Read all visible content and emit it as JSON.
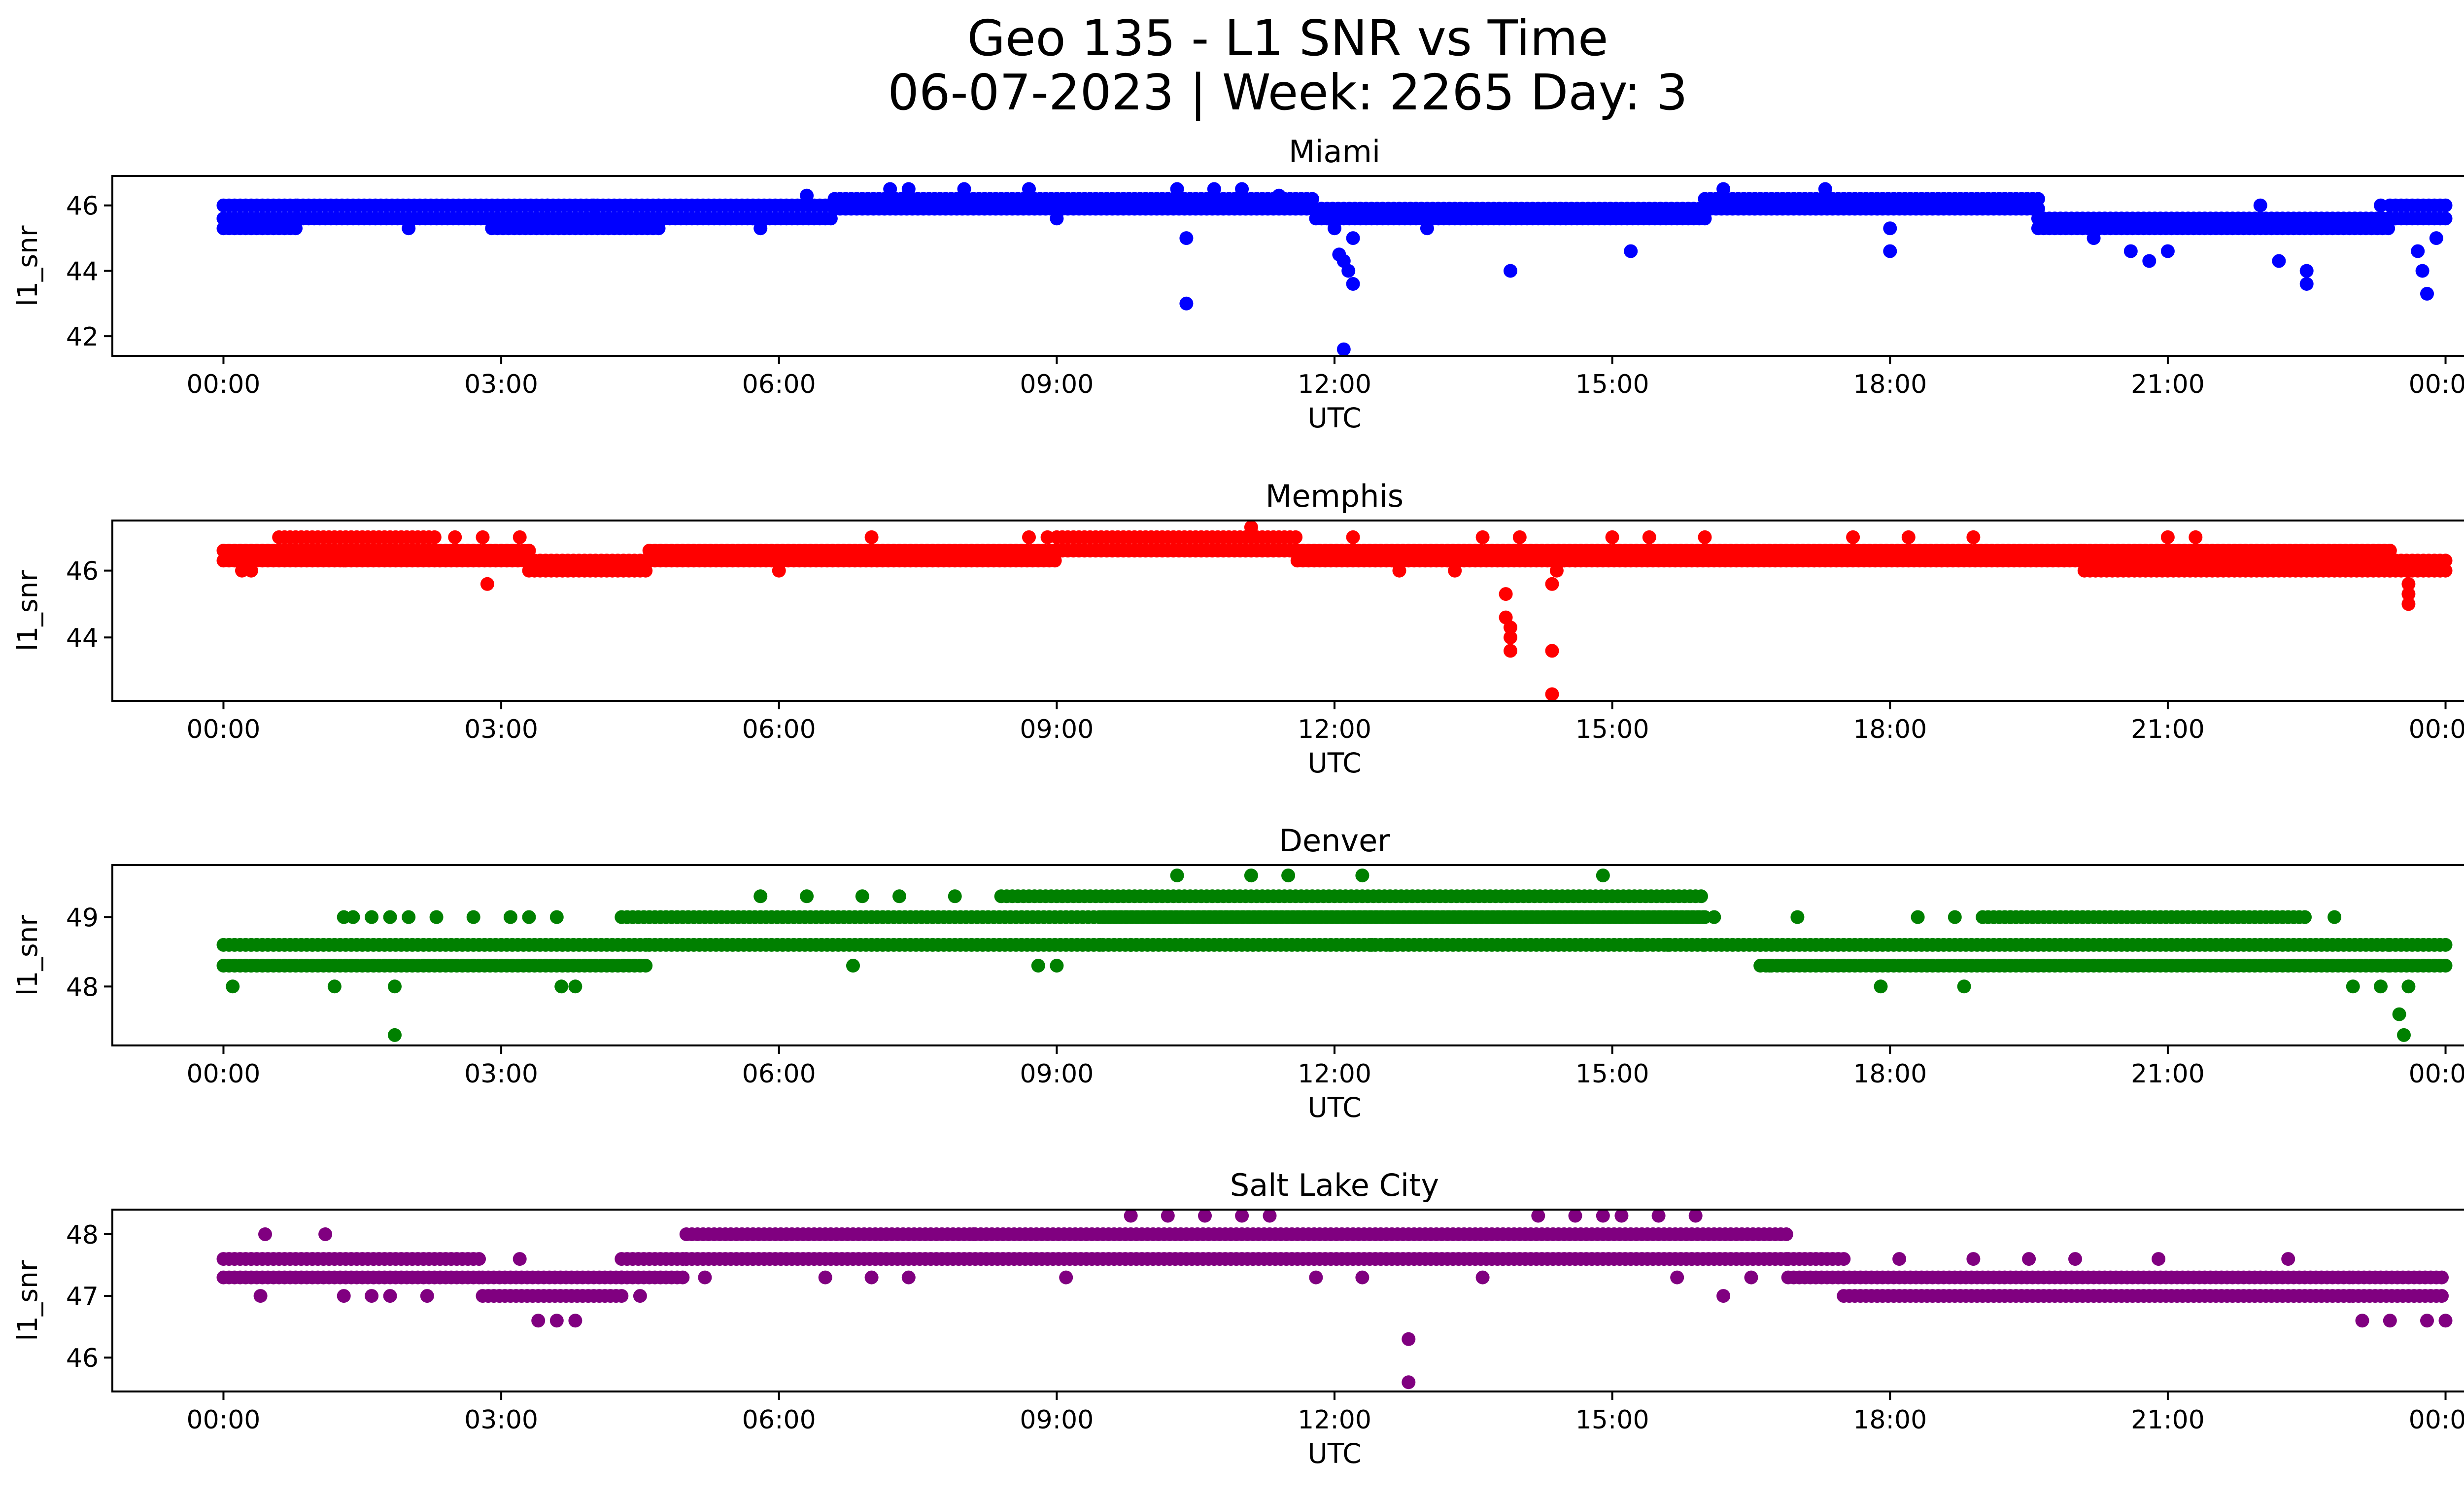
{
  "chart_data": [
    {
      "type": "scatter",
      "title": "Miami",
      "xlabel": "UTC",
      "ylabel": "l1_snr",
      "color": "#0000ff",
      "xlim_hours": [
        -1.2,
        25.2
      ],
      "ylim": [
        41.4,
        46.9
      ],
      "xticks": [
        {
          "value": 0,
          "label": "00:00"
        },
        {
          "value": 3,
          "label": "03:00"
        },
        {
          "value": 6,
          "label": "06:00"
        },
        {
          "value": 9,
          "label": "09:00"
        },
        {
          "value": 12,
          "label": "12:00"
        },
        {
          "value": 15,
          "label": "15:00"
        },
        {
          "value": 18,
          "label": "18:00"
        },
        {
          "value": 21,
          "label": "21:00"
        },
        {
          "value": 24,
          "label": "00:00"
        }
      ],
      "yticks": [
        {
          "value": 42,
          "label": "42"
        },
        {
          "value": 44,
          "label": "44"
        },
        {
          "value": 46,
          "label": "46"
        }
      ],
      "bands": [
        {
          "start": 0,
          "end": 0.8,
          "values": [
            45.3,
            45.6,
            46.0
          ]
        },
        {
          "start": 0.8,
          "end": 4.7,
          "values": [
            45.6,
            46.0
          ]
        },
        {
          "start": 2.9,
          "end": 4.7,
          "values": [
            45.3,
            45.6
          ]
        },
        {
          "start": 4.7,
          "end": 6.6,
          "values": [
            45.6,
            46.0
          ]
        },
        {
          "start": 6.6,
          "end": 11.8,
          "values": [
            45.9,
            46.2
          ]
        },
        {
          "start": 11.8,
          "end": 16.0,
          "values": [
            45.6,
            45.9
          ]
        },
        {
          "start": 16.0,
          "end": 19.6,
          "values": [
            45.9,
            46.2
          ]
        },
        {
          "start": 19.6,
          "end": 23.4,
          "values": [
            45.3,
            45.6
          ]
        },
        {
          "start": 23.4,
          "end": 24.0,
          "values": [
            45.6,
            46.0
          ]
        }
      ],
      "points": [
        [
          0.0,
          45.6
        ],
        [
          2.0,
          45.3
        ],
        [
          3.5,
          46.0
        ],
        [
          4.0,
          46.0
        ],
        [
          5.8,
          45.3
        ],
        [
          6.3,
          46.3
        ],
        [
          7.2,
          46.5
        ],
        [
          7.4,
          46.5
        ],
        [
          8.0,
          46.5
        ],
        [
          8.7,
          46.5
        ],
        [
          9.0,
          45.6
        ],
        [
          10.3,
          46.5
        ],
        [
          10.4,
          45.0
        ],
        [
          10.4,
          43.0
        ],
        [
          10.7,
          46.5
        ],
        [
          11.0,
          46.5
        ],
        [
          11.4,
          46.3
        ],
        [
          12.0,
          45.3
        ],
        [
          12.05,
          44.5
        ],
        [
          12.1,
          44.3
        ],
        [
          12.1,
          41.6
        ],
        [
          12.15,
          44.0
        ],
        [
          12.2,
          43.6
        ],
        [
          12.2,
          45.0
        ],
        [
          13.0,
          45.3
        ],
        [
          13.9,
          44.0
        ],
        [
          15.2,
          44.6
        ],
        [
          16.2,
          46.5
        ],
        [
          17.3,
          46.5
        ],
        [
          18.0,
          44.6
        ],
        [
          18.0,
          45.3
        ],
        [
          20.2,
          45.0
        ],
        [
          20.6,
          44.6
        ],
        [
          20.8,
          44.3
        ],
        [
          21.0,
          44.6
        ],
        [
          22.0,
          46.0
        ],
        [
          22.2,
          44.3
        ],
        [
          22.5,
          44.0
        ],
        [
          22.5,
          43.6
        ],
        [
          23.3,
          46.0
        ],
        [
          23.7,
          44.6
        ],
        [
          23.75,
          44.0
        ],
        [
          23.8,
          43.3
        ],
        [
          23.9,
          45.0
        ]
      ]
    },
    {
      "type": "scatter",
      "title": "Memphis",
      "xlabel": "UTC",
      "ylabel": "l1_snr",
      "color": "#ff0000",
      "xlim_hours": [
        -1.2,
        25.2
      ],
      "ylim": [
        42.1,
        47.5
      ],
      "xticks": [
        {
          "value": 0,
          "label": "00:00"
        },
        {
          "value": 3,
          "label": "03:00"
        },
        {
          "value": 6,
          "label": "06:00"
        },
        {
          "value": 9,
          "label": "09:00"
        },
        {
          "value": 12,
          "label": "12:00"
        },
        {
          "value": 15,
          "label": "15:00"
        },
        {
          "value": 18,
          "label": "18:00"
        },
        {
          "value": 21,
          "label": "21:00"
        },
        {
          "value": 24,
          "label": "00:00"
        }
      ],
      "yticks": [
        {
          "value": 44,
          "label": "44"
        },
        {
          "value": 46,
          "label": "46"
        }
      ],
      "bands": [
        {
          "start": 0,
          "end": 3.3,
          "values": [
            46.3,
            46.6
          ]
        },
        {
          "start": 0.6,
          "end": 2.3,
          "values": [
            47.0
          ]
        },
        {
          "start": 3.3,
          "end": 4.6,
          "values": [
            46.0,
            46.3
          ]
        },
        {
          "start": 4.6,
          "end": 9.0,
          "values": [
            46.3,
            46.6
          ]
        },
        {
          "start": 9.0,
          "end": 11.6,
          "values": [
            46.6,
            47.0
          ]
        },
        {
          "start": 11.6,
          "end": 20.1,
          "values": [
            46.3,
            46.6
          ]
        },
        {
          "start": 20.1,
          "end": 23.4,
          "values": [
            46.0,
            46.3,
            46.6
          ]
        },
        {
          "start": 23.4,
          "end": 24.0,
          "values": [
            46.0,
            46.3
          ]
        }
      ],
      "points": [
        [
          0.2,
          46.0
        ],
        [
          0.3,
          46.0
        ],
        [
          1.3,
          46.3
        ],
        [
          2.5,
          47.0
        ],
        [
          2.8,
          47.0
        ],
        [
          2.85,
          45.6
        ],
        [
          3.2,
          47.0
        ],
        [
          6.0,
          46.0
        ],
        [
          7.0,
          47.0
        ],
        [
          8.7,
          47.0
        ],
        [
          8.9,
          47.0
        ],
        [
          11.1,
          47.3
        ],
        [
          12.2,
          47.0
        ],
        [
          12.7,
          46.0
        ],
        [
          13.3,
          46.0
        ],
        [
          13.6,
          47.0
        ],
        [
          13.85,
          45.3
        ],
        [
          13.85,
          44.6
        ],
        [
          13.9,
          44.3
        ],
        [
          13.9,
          44.0
        ],
        [
          13.9,
          43.6
        ],
        [
          14.0,
          47.0
        ],
        [
          14.35,
          45.6
        ],
        [
          14.35,
          43.6
        ],
        [
          14.4,
          46.0
        ],
        [
          14.35,
          42.3
        ],
        [
          14.6,
          46.3
        ],
        [
          15.0,
          47.0
        ],
        [
          15.4,
          47.0
        ],
        [
          16.0,
          47.0
        ],
        [
          17.6,
          47.0
        ],
        [
          18.2,
          47.0
        ],
        [
          18.9,
          47.0
        ],
        [
          21.0,
          47.0
        ],
        [
          21.3,
          47.0
        ],
        [
          23.6,
          45.6
        ],
        [
          23.6,
          45.3
        ],
        [
          23.6,
          45.0
        ]
      ]
    },
    {
      "type": "scatter",
      "title": "Denver",
      "xlabel": "UTC",
      "ylabel": "l1_snr",
      "color": "#008000",
      "xlim_hours": [
        -1.2,
        25.2
      ],
      "ylim": [
        47.15,
        49.75
      ],
      "xticks": [
        {
          "value": 0,
          "label": "00:00"
        },
        {
          "value": 3,
          "label": "03:00"
        },
        {
          "value": 6,
          "label": "06:00"
        },
        {
          "value": 9,
          "label": "09:00"
        },
        {
          "value": 12,
          "label": "12:00"
        },
        {
          "value": 15,
          "label": "15:00"
        },
        {
          "value": 18,
          "label": "18:00"
        },
        {
          "value": 21,
          "label": "21:00"
        },
        {
          "value": 24,
          "label": "00:00"
        }
      ],
      "yticks": [
        {
          "value": 48,
          "label": "48"
        },
        {
          "value": 49,
          "label": "49"
        }
      ],
      "bands": [
        {
          "start": 0,
          "end": 4.6,
          "values": [
            48.3,
            48.6
          ]
        },
        {
          "start": 4.3,
          "end": 16.0,
          "values": [
            49.0
          ]
        },
        {
          "start": 4.6,
          "end": 9.5,
          "values": [
            48.6
          ]
        },
        {
          "start": 8.4,
          "end": 16.0,
          "values": [
            49.3
          ]
        },
        {
          "start": 9.5,
          "end": 16.0,
          "values": [
            49.0,
            48.6
          ]
        },
        {
          "start": 16.0,
          "end": 16.6,
          "values": [
            48.6
          ]
        },
        {
          "start": 16.6,
          "end": 23.4,
          "values": [
            48.3,
            48.6
          ]
        },
        {
          "start": 19.0,
          "end": 22.5,
          "values": [
            49.0
          ]
        },
        {
          "start": 23.4,
          "end": 24.0,
          "values": [
            48.3,
            48.6
          ]
        }
      ],
      "points": [
        [
          0.1,
          48.0
        ],
        [
          1.2,
          48.0
        ],
        [
          1.3,
          49.0
        ],
        [
          1.4,
          49.0
        ],
        [
          1.6,
          49.0
        ],
        [
          1.8,
          49.0
        ],
        [
          1.85,
          48.0
        ],
        [
          1.85,
          47.3
        ],
        [
          2.0,
          49.0
        ],
        [
          2.3,
          49.0
        ],
        [
          2.7,
          49.0
        ],
        [
          3.1,
          49.0
        ],
        [
          3.3,
          49.0
        ],
        [
          3.6,
          49.0
        ],
        [
          3.65,
          48.0
        ],
        [
          3.8,
          48.0
        ],
        [
          5.8,
          49.3
        ],
        [
          6.3,
          49.3
        ],
        [
          6.9,
          49.3
        ],
        [
          6.8,
          48.3
        ],
        [
          7.3,
          49.3
        ],
        [
          7.9,
          49.3
        ],
        [
          8.8,
          48.3
        ],
        [
          9.0,
          48.3
        ],
        [
          9.8,
          48.6
        ],
        [
          10.3,
          49.6
        ],
        [
          11.1,
          49.6
        ],
        [
          11.5,
          49.6
        ],
        [
          12.3,
          49.6
        ],
        [
          12.4,
          48.6
        ],
        [
          12.6,
          48.6
        ],
        [
          14.9,
          49.6
        ],
        [
          15.3,
          48.6
        ],
        [
          15.6,
          48.6
        ],
        [
          16.1,
          49.0
        ],
        [
          16.7,
          48.3
        ],
        [
          17.0,
          49.0
        ],
        [
          17.9,
          48.0
        ],
        [
          18.3,
          49.0
        ],
        [
          18.7,
          49.0
        ],
        [
          18.8,
          48.0
        ],
        [
          19.3,
          49.0
        ],
        [
          22.8,
          49.0
        ],
        [
          23.0,
          48.0
        ],
        [
          23.3,
          48.0
        ],
        [
          23.5,
          47.6
        ],
        [
          23.55,
          47.3
        ],
        [
          23.6,
          48.0
        ]
      ]
    },
    {
      "type": "scatter",
      "title": "Salt Lake City",
      "xlabel": "UTC",
      "ylabel": "l1_snr",
      "color": "#800080",
      "xlim_hours": [
        -1.2,
        25.2
      ],
      "ylim": [
        45.45,
        48.4
      ],
      "xticks": [
        {
          "value": 0,
          "label": "00:00"
        },
        {
          "value": 3,
          "label": "03:00"
        },
        {
          "value": 6,
          "label": "06:00"
        },
        {
          "value": 9,
          "label": "09:00"
        },
        {
          "value": 12,
          "label": "12:00"
        },
        {
          "value": 15,
          "label": "15:00"
        },
        {
          "value": 18,
          "label": "18:00"
        },
        {
          "value": 21,
          "label": "21:00"
        },
        {
          "value": 24,
          "label": "00:00"
        }
      ],
      "yticks": [
        {
          "value": 46,
          "label": "46"
        },
        {
          "value": 47,
          "label": "47"
        },
        {
          "value": 48,
          "label": "48"
        }
      ],
      "bands": [
        {
          "start": 0,
          "end": 2.8,
          "values": [
            47.3,
            47.6
          ]
        },
        {
          "start": 2.8,
          "end": 4.3,
          "values": [
            47.0,
            47.3
          ]
        },
        {
          "start": 4.3,
          "end": 5.0,
          "values": [
            47.3,
            47.6
          ]
        },
        {
          "start": 5.0,
          "end": 16.9,
          "values": [
            47.6,
            48.0
          ]
        },
        {
          "start": 16.9,
          "end": 17.5,
          "values": [
            47.3,
            47.6
          ]
        },
        {
          "start": 17.5,
          "end": 23.0,
          "values": [
            47.0,
            47.3
          ]
        },
        {
          "start": 23.0,
          "end": 24.0,
          "values": [
            47.0,
            47.3
          ]
        }
      ],
      "points": [
        [
          0.4,
          47.0
        ],
        [
          0.45,
          48.0
        ],
        [
          1.1,
          48.0
        ],
        [
          1.3,
          47.0
        ],
        [
          1.6,
          47.0
        ],
        [
          1.8,
          47.0
        ],
        [
          2.2,
          47.0
        ],
        [
          3.4,
          46.6
        ],
        [
          3.6,
          46.6
        ],
        [
          3.8,
          46.6
        ],
        [
          3.2,
          47.6
        ],
        [
          4.5,
          47.0
        ],
        [
          5.2,
          47.3
        ],
        [
          6.5,
          47.3
        ],
        [
          7.0,
          47.3
        ],
        [
          7.4,
          47.3
        ],
        [
          8.1,
          48.0
        ],
        [
          9.1,
          47.3
        ],
        [
          9.8,
          48.3
        ],
        [
          10.2,
          48.3
        ],
        [
          10.6,
          48.3
        ],
        [
          11.0,
          48.3
        ],
        [
          11.3,
          48.3
        ],
        [
          11.8,
          47.3
        ],
        [
          12.3,
          47.3
        ],
        [
          12.8,
          46.3
        ],
        [
          12.8,
          45.6
        ],
        [
          13.6,
          47.3
        ],
        [
          14.2,
          48.3
        ],
        [
          14.6,
          48.3
        ],
        [
          14.9,
          48.3
        ],
        [
          15.1,
          48.3
        ],
        [
          15.5,
          48.3
        ],
        [
          15.9,
          48.3
        ],
        [
          15.7,
          47.3
        ],
        [
          16.2,
          47.0
        ],
        [
          16.5,
          47.3
        ],
        [
          18.1,
          47.6
        ],
        [
          18.9,
          47.6
        ],
        [
          19.5,
          47.6
        ],
        [
          20.0,
          47.6
        ],
        [
          20.9,
          47.6
        ],
        [
          22.3,
          47.6
        ],
        [
          22.6,
          47.0
        ],
        [
          23.1,
          46.6
        ],
        [
          23.4,
          46.6
        ],
        [
          23.8,
          46.6
        ],
        [
          24.0,
          46.6
        ]
      ]
    }
  ],
  "figure_title": {
    "line1": "Geo 135 - L1 SNR vs Time",
    "line2": "06-07-2023 | Week: 2265 Day: 3"
  }
}
